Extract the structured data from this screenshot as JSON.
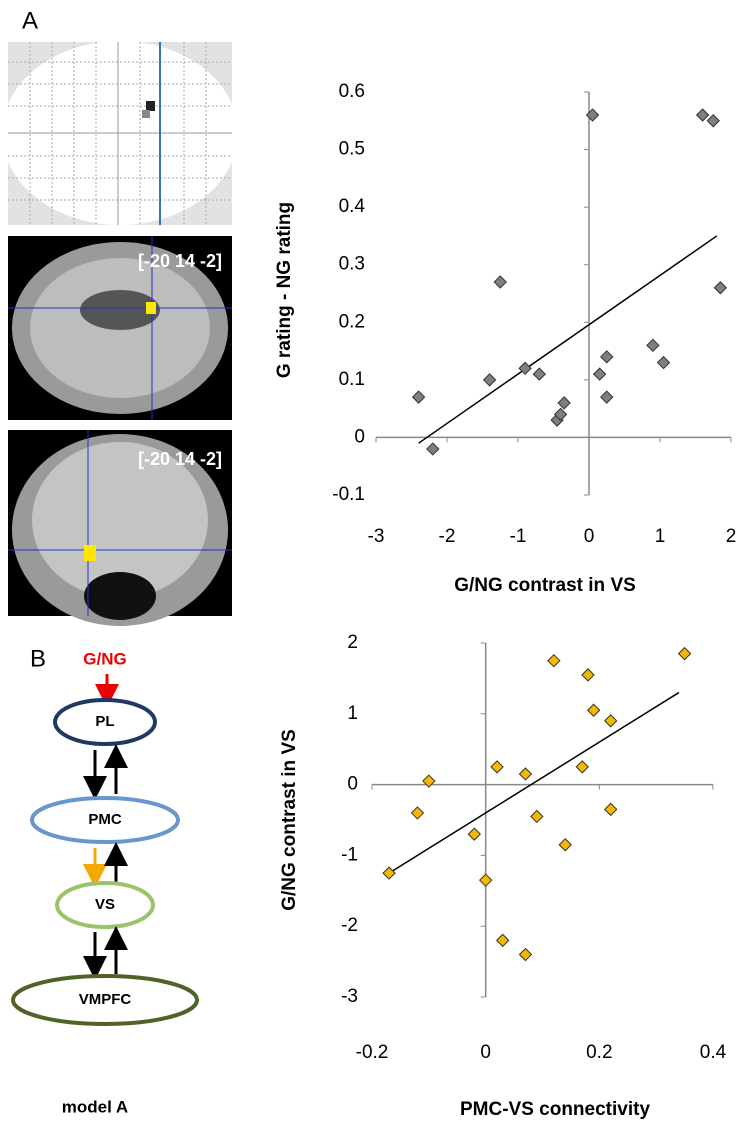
{
  "panels": [
    "A",
    "B"
  ],
  "brain": {
    "coords": [
      "[-20 14 -2]",
      "[-20 14 -2]"
    ]
  },
  "diagram": {
    "input": "G/NG",
    "nodes": [
      "PL",
      "PMC",
      "VS",
      "VMPFC"
    ],
    "caption": "model A"
  },
  "chart_data": [
    {
      "type": "scatter",
      "xlabel": "G/NG contrast in VS",
      "ylabel": "G rating - NG rating",
      "x": [
        -2.4,
        -2.2,
        -1.4,
        -1.25,
        -0.9,
        -0.7,
        -0.45,
        -0.4,
        -0.35,
        0.05,
        0.15,
        0.25,
        0.25,
        0.9,
        1.05,
        1.6,
        1.75,
        1.85
      ],
      "values": [
        0.07,
        -0.02,
        0.1,
        0.27,
        0.12,
        0.11,
        0.03,
        0.04,
        0.06,
        0.56,
        0.11,
        0.14,
        0.07,
        0.16,
        0.13,
        0.56,
        0.55,
        0.26
      ],
      "color": "#7f7f7f",
      "trendline": {
        "x": [
          -2.4,
          1.8
        ],
        "y": [
          -0.01,
          0.35
        ]
      },
      "xlim": [
        -3,
        2
      ],
      "xticks": [
        -3,
        -2,
        -1,
        0,
        1,
        2
      ],
      "ylim": [
        -0.1,
        0.6
      ],
      "yticks": [
        -0.1,
        0,
        0.1,
        0.2,
        0.3,
        0.4,
        0.5,
        0.6
      ]
    },
    {
      "type": "scatter",
      "xlabel": "PMC-VS connectivity",
      "ylabel": "G/NG contrast in VS",
      "x": [
        -0.17,
        -0.1,
        -0.12,
        -0.02,
        0,
        0.02,
        0.03,
        0.07,
        0.07,
        0.09,
        0.12,
        0.14,
        0.17,
        0.18,
        0.19,
        0.22,
        0.22,
        0.35
      ],
      "values": [
        -1.25,
        0.05,
        -0.4,
        -0.7,
        -1.35,
        0.25,
        -2.2,
        0.15,
        -2.4,
        -0.45,
        1.75,
        -0.85,
        0.25,
        1.55,
        1.05,
        0.9,
        -0.35,
        1.85
      ],
      "color": "#f5b800",
      "trendline": {
        "x": [
          -0.17,
          0.34
        ],
        "y": [
          -1.25,
          1.3
        ]
      },
      "xlim": [
        -0.2,
        0.4
      ],
      "xticks": [
        -0.2,
        0,
        0.2,
        0.4
      ],
      "ylim": [
        -3,
        2
      ],
      "yticks": [
        -3,
        -2,
        -1,
        0,
        1,
        2
      ]
    }
  ]
}
